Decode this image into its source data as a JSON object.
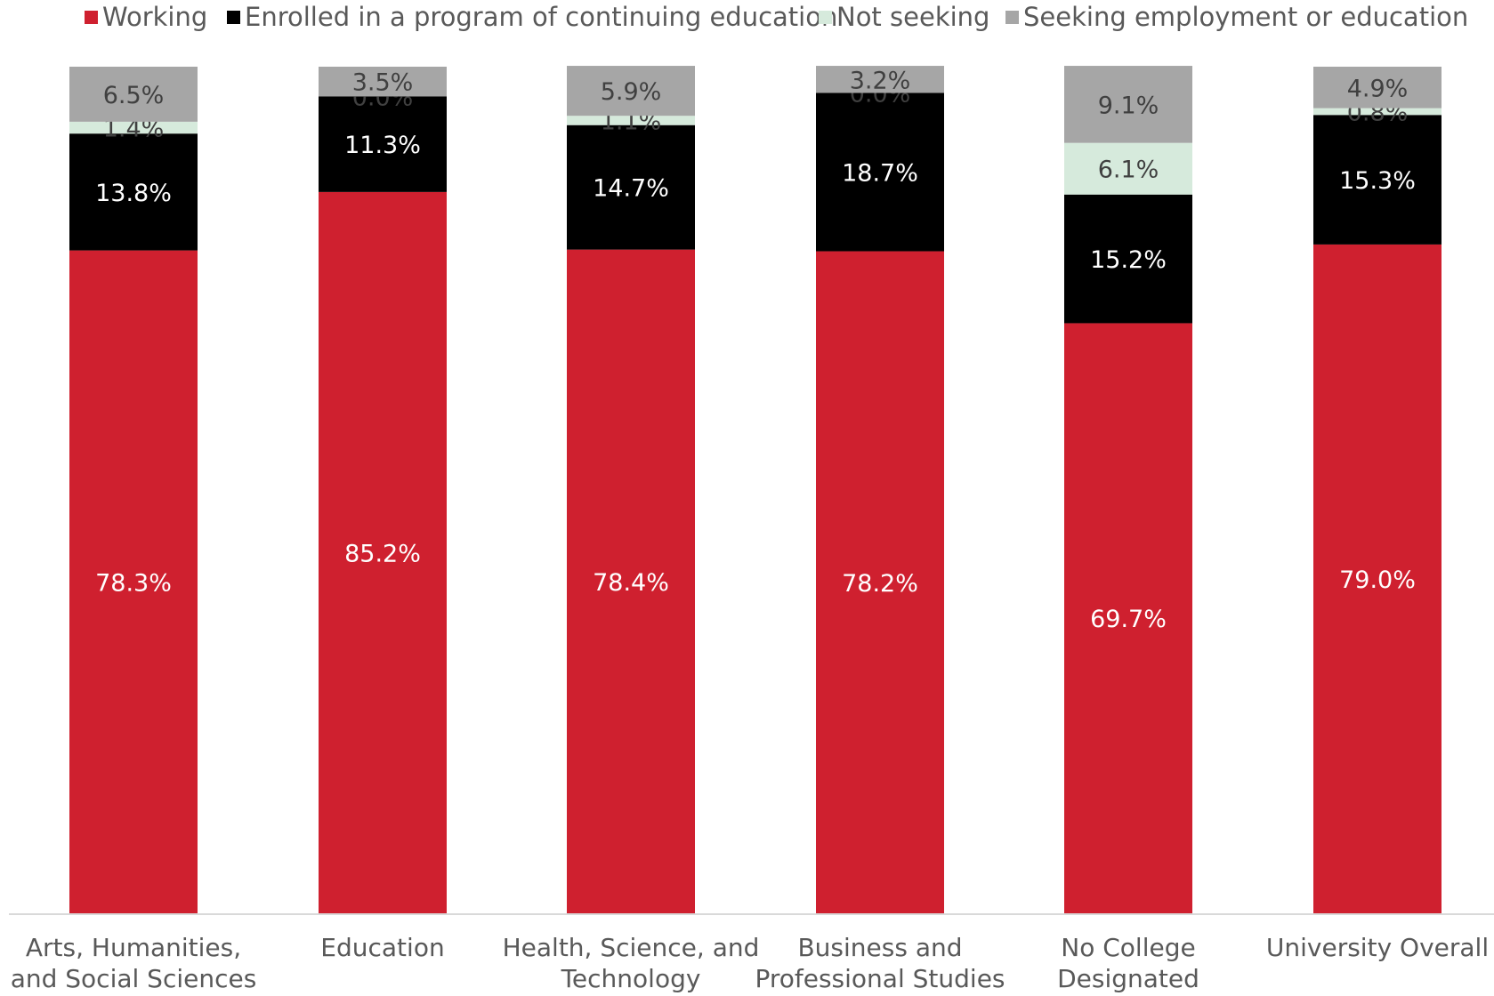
{
  "chart_data": {
    "type": "bar",
    "stacked": true,
    "categories": [
      [
        "Arts, Humanities,",
        "and Social Sciences"
      ],
      [
        "Education"
      ],
      [
        "Health, Science, and",
        "Technology"
      ],
      [
        "Business and",
        "Professional Studies"
      ],
      [
        "No College",
        "Designated"
      ],
      [
        "University Overall"
      ]
    ],
    "series": [
      {
        "name": "Working",
        "color": "#cf202f",
        "label_color": "#ffffff",
        "values": [
          78.3,
          85.2,
          78.4,
          78.2,
          69.7,
          79.0
        ],
        "labels": [
          "78.3%",
          "85.2%",
          "78.4%",
          "78.2%",
          "69.7%",
          "79.0%"
        ]
      },
      {
        "name": "Enrolled in a program of continuing education",
        "color": "#000000",
        "label_color": "#ffffff",
        "values": [
          13.8,
          11.3,
          14.7,
          18.7,
          15.2,
          15.3
        ],
        "labels": [
          "13.8%",
          "11.3%",
          "14.7%",
          "18.7%",
          "15.2%",
          "15.3%"
        ]
      },
      {
        "name": "Not seeking",
        "color": "#d6eadc",
        "label_color": "#404040",
        "values": [
          1.4,
          0.0,
          1.1,
          0.0,
          6.1,
          0.8
        ],
        "labels": [
          "1.4%",
          "0.0%",
          "1.1%",
          "0.0%",
          "6.1%",
          "0.8%"
        ]
      },
      {
        "name": "Seeking employment or education",
        "color": "#a6a6a6",
        "label_color": "#404040",
        "values": [
          6.5,
          3.5,
          5.9,
          3.2,
          9.1,
          4.9
        ],
        "labels": [
          "6.5%",
          "3.5%",
          "5.9%",
          "3.2%",
          "9.1%",
          "4.9%"
        ]
      }
    ],
    "ylim": [
      0,
      100
    ],
    "grid": false,
    "legend_position": "top"
  }
}
